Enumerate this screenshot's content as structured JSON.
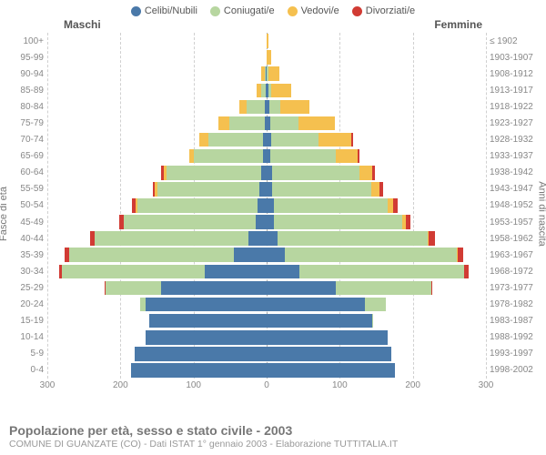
{
  "legend": [
    {
      "label": "Celibi/Nubili",
      "color": "#4a79a9"
    },
    {
      "label": "Coniugati/e",
      "color": "#b7d6a0"
    },
    {
      "label": "Vedovi/e",
      "color": "#f5c04f"
    },
    {
      "label": "Divorziati/e",
      "color": "#d13b34"
    }
  ],
  "headers": {
    "male": "Maschi",
    "female": "Femmine"
  },
  "axis_labels": {
    "left": "Fasce di età",
    "right": "Anni di nascita"
  },
  "x_axis": {
    "max": 300,
    "ticks": [
      300,
      200,
      100,
      0,
      100,
      200,
      300
    ]
  },
  "colors": {
    "single": "#4a79a9",
    "married": "#b7d6a0",
    "widowed": "#f5c04f",
    "divorced": "#d13b34",
    "grid": "#d0d0d0",
    "grid_center": "#aaa",
    "text_muted": "#888",
    "bg": "#ffffff"
  },
  "footer": {
    "title": "Popolazione per età, sesso e stato civile - 2003",
    "subtitle": "COMUNE DI GUANZATE (CO) - Dati ISTAT 1° gennaio 2003 - Elaborazione TUTTITALIA.IT"
  },
  "rows": [
    {
      "age": "100+",
      "birth": "≤ 1902",
      "m": {
        "s": 0,
        "c": 0,
        "v": 0,
        "d": 0
      },
      "f": {
        "s": 0,
        "c": 0,
        "v": 3,
        "d": 0
      }
    },
    {
      "age": "95-99",
      "birth": "1903-1907",
      "m": {
        "s": 0,
        "c": 0,
        "v": 0,
        "d": 0
      },
      "f": {
        "s": 0,
        "c": 0,
        "v": 6,
        "d": 0
      }
    },
    {
      "age": "90-94",
      "birth": "1908-1912",
      "m": {
        "s": 1,
        "c": 2,
        "v": 4,
        "d": 0
      },
      "f": {
        "s": 0,
        "c": 2,
        "v": 15,
        "d": 0
      }
    },
    {
      "age": "85-89",
      "birth": "1913-1917",
      "m": {
        "s": 1,
        "c": 7,
        "v": 6,
        "d": 0
      },
      "f": {
        "s": 2,
        "c": 4,
        "v": 28,
        "d": 0
      }
    },
    {
      "age": "80-84",
      "birth": "1918-1922",
      "m": {
        "s": 2,
        "c": 25,
        "v": 10,
        "d": 0
      },
      "f": {
        "s": 4,
        "c": 15,
        "v": 40,
        "d": 0
      }
    },
    {
      "age": "75-79",
      "birth": "1923-1927",
      "m": {
        "s": 3,
        "c": 48,
        "v": 15,
        "d": 0
      },
      "f": {
        "s": 5,
        "c": 38,
        "v": 50,
        "d": 0
      }
    },
    {
      "age": "70-74",
      "birth": "1928-1932",
      "m": {
        "s": 5,
        "c": 75,
        "v": 12,
        "d": 0
      },
      "f": {
        "s": 6,
        "c": 65,
        "v": 45,
        "d": 2
      }
    },
    {
      "age": "65-69",
      "birth": "1933-1937",
      "m": {
        "s": 5,
        "c": 95,
        "v": 6,
        "d": 0
      },
      "f": {
        "s": 5,
        "c": 90,
        "v": 30,
        "d": 2
      }
    },
    {
      "age": "60-64",
      "birth": "1938-1942",
      "m": {
        "s": 7,
        "c": 130,
        "v": 4,
        "d": 3
      },
      "f": {
        "s": 7,
        "c": 120,
        "v": 18,
        "d": 3
      }
    },
    {
      "age": "55-59",
      "birth": "1943-1947",
      "m": {
        "s": 10,
        "c": 140,
        "v": 3,
        "d": 3
      },
      "f": {
        "s": 8,
        "c": 135,
        "v": 12,
        "d": 4
      }
    },
    {
      "age": "50-54",
      "birth": "1948-1952",
      "m": {
        "s": 12,
        "c": 165,
        "v": 2,
        "d": 5
      },
      "f": {
        "s": 10,
        "c": 155,
        "v": 8,
        "d": 6
      }
    },
    {
      "age": "45-49",
      "birth": "1953-1957",
      "m": {
        "s": 15,
        "c": 180,
        "v": 1,
        "d": 6
      },
      "f": {
        "s": 10,
        "c": 175,
        "v": 5,
        "d": 7
      }
    },
    {
      "age": "40-44",
      "birth": "1958-1962",
      "m": {
        "s": 25,
        "c": 210,
        "v": 0,
        "d": 6
      },
      "f": {
        "s": 15,
        "c": 205,
        "v": 2,
        "d": 8
      }
    },
    {
      "age": "35-39",
      "birth": "1963-1967",
      "m": {
        "s": 45,
        "c": 225,
        "v": 0,
        "d": 6
      },
      "f": {
        "s": 25,
        "c": 235,
        "v": 1,
        "d": 8
      }
    },
    {
      "age": "30-34",
      "birth": "1968-1972",
      "m": {
        "s": 85,
        "c": 195,
        "v": 0,
        "d": 4
      },
      "f": {
        "s": 45,
        "c": 225,
        "v": 0,
        "d": 6
      }
    },
    {
      "age": "25-29",
      "birth": "1973-1977",
      "m": {
        "s": 145,
        "c": 75,
        "v": 0,
        "d": 1
      },
      "f": {
        "s": 95,
        "c": 130,
        "v": 0,
        "d": 2
      }
    },
    {
      "age": "20-24",
      "birth": "1978-1982",
      "m": {
        "s": 165,
        "c": 8,
        "v": 0,
        "d": 0
      },
      "f": {
        "s": 135,
        "c": 28,
        "v": 0,
        "d": 0
      }
    },
    {
      "age": "15-19",
      "birth": "1983-1987",
      "m": {
        "s": 160,
        "c": 0,
        "v": 0,
        "d": 0
      },
      "f": {
        "s": 145,
        "c": 1,
        "v": 0,
        "d": 0
      }
    },
    {
      "age": "10-14",
      "birth": "1988-1992",
      "m": {
        "s": 165,
        "c": 0,
        "v": 0,
        "d": 0
      },
      "f": {
        "s": 165,
        "c": 0,
        "v": 0,
        "d": 0
      }
    },
    {
      "age": "5-9",
      "birth": "1993-1997",
      "m": {
        "s": 180,
        "c": 0,
        "v": 0,
        "d": 0
      },
      "f": {
        "s": 170,
        "c": 0,
        "v": 0,
        "d": 0
      }
    },
    {
      "age": "0-4",
      "birth": "1998-2002",
      "m": {
        "s": 185,
        "c": 0,
        "v": 0,
        "d": 0
      },
      "f": {
        "s": 175,
        "c": 0,
        "v": 0,
        "d": 0
      }
    }
  ]
}
